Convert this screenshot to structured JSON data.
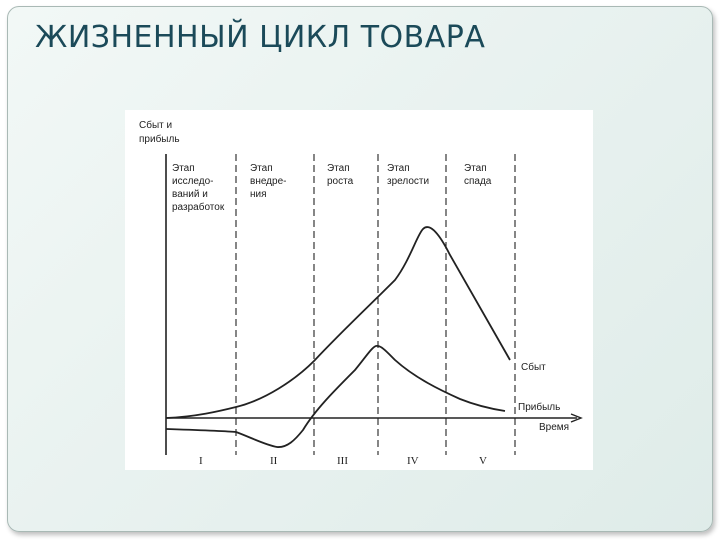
{
  "slide": {
    "title": "ЖИЗНЕННЫЙ ЦИКЛ ТОВАРА"
  },
  "diagram": {
    "y_axis_label": [
      "Сбыт и",
      "прибыль"
    ],
    "x_axis_label": "Время",
    "stages": [
      {
        "lines": [
          "Этап",
          "исследо-",
          "ваний и",
          "разработок"
        ],
        "numeral": "I"
      },
      {
        "lines": [
          "Этап",
          "внедре-",
          "ния"
        ],
        "numeral": "II"
      },
      {
        "lines": [
          "Этап",
          "роста"
        ],
        "numeral": "III"
      },
      {
        "lines": [
          "Этап",
          "зрелости"
        ],
        "numeral": "IV"
      },
      {
        "lines": [
          "Этап",
          "спада"
        ],
        "numeral": "V"
      }
    ],
    "curves": {
      "sales_label": "Сбыт",
      "profit_label": "Прибыль"
    },
    "colors": {
      "ink": "#222222",
      "title": "#1b4a59"
    }
  }
}
